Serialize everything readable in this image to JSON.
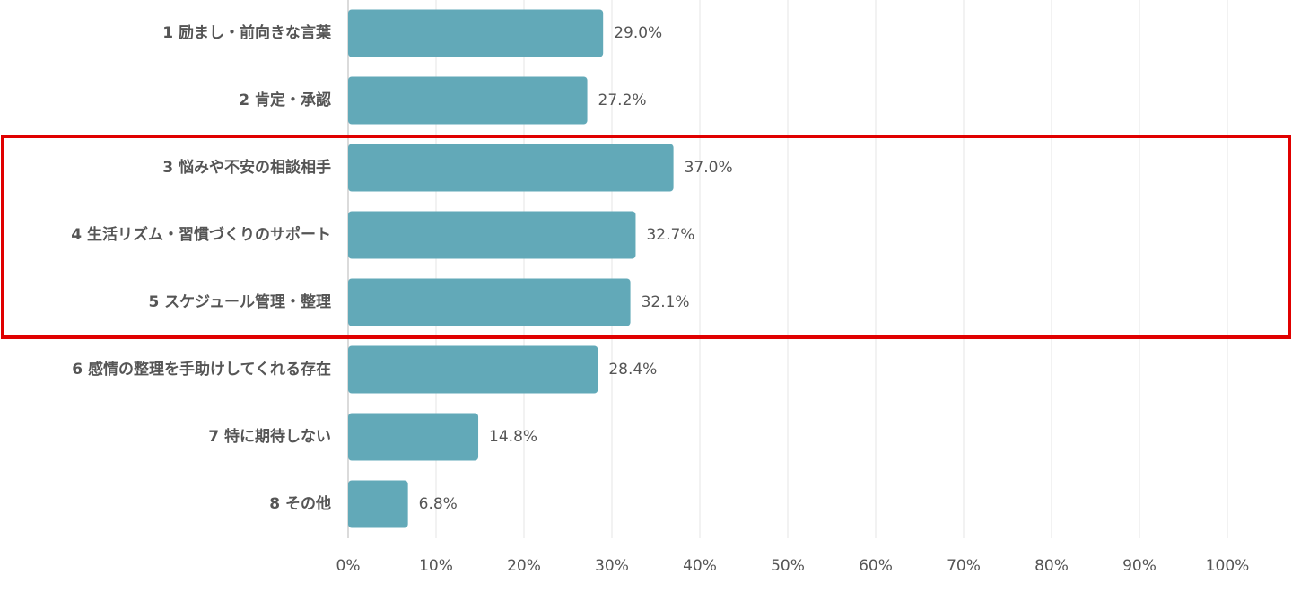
{
  "chart_data": {
    "type": "barh",
    "categories": [
      "1 励まし・前向きな言葉",
      "2 肯定・承認",
      "3 悩みや不安の相談相手",
      "4 生活リズム・習慣づくりのサポート",
      "5 スケジュール管理・整理",
      "6 感情の整理を手助けしてくれる存在",
      "7 特に期待しない",
      "8 その他"
    ],
    "values": [
      29.0,
      27.2,
      37.0,
      32.7,
      32.1,
      28.4,
      14.8,
      6.8
    ],
    "value_labels": [
      "29.0%",
      "27.2%",
      "37.0%",
      "32.7%",
      "32.1%",
      "28.4%",
      "14.8%",
      "6.8%"
    ],
    "color": "#62a9b8",
    "xlim": [
      0,
      100
    ],
    "xticks": [
      {
        "value": 0,
        "label": "0%"
      },
      {
        "value": 10,
        "label": "10%"
      },
      {
        "value": 20,
        "label": "20%"
      },
      {
        "value": 30,
        "label": "30%"
      },
      {
        "value": 40,
        "label": "40%"
      },
      {
        "value": 50,
        "label": "50%"
      },
      {
        "value": 60,
        "label": "60%"
      },
      {
        "value": 70,
        "label": "70%"
      },
      {
        "value": 80,
        "label": "80%"
      },
      {
        "value": 90,
        "label": "90%"
      },
      {
        "value": 100,
        "label": "100%"
      }
    ],
    "grid": true
  }
}
